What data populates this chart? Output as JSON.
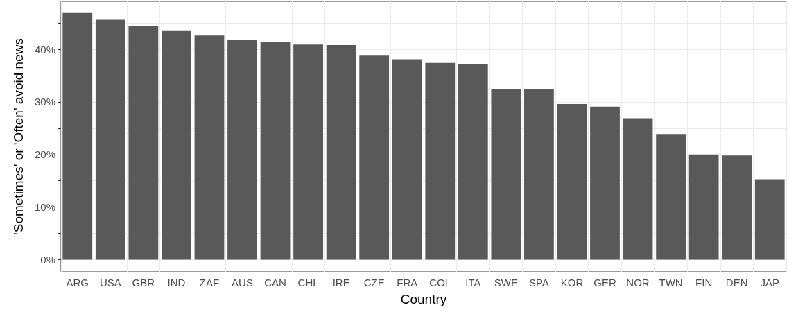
{
  "chart_data": {
    "type": "bar",
    "xlabel": "Country",
    "ylabel": "'Sometimes' or 'Often' avoid news",
    "categories": [
      "ARG",
      "USA",
      "GBR",
      "IND",
      "ZAF",
      "AUS",
      "CAN",
      "CHL",
      "IRE",
      "CZE",
      "FRA",
      "COL",
      "ITA",
      "SWE",
      "SPA",
      "KOR",
      "GER",
      "NOR",
      "TWN",
      "FIN",
      "DEN",
      "JAP"
    ],
    "values": [
      46.9,
      45.6,
      44.5,
      43.6,
      42.6,
      41.8,
      41.4,
      40.9,
      40.8,
      38.8,
      38.1,
      37.4,
      37.1,
      32.5,
      32.4,
      29.6,
      29.1,
      26.9,
      23.9,
      20.0,
      19.8,
      15.3
    ],
    "color": "#595959",
    "ylim": [
      -2.3,
      49.1
    ],
    "yticks": [
      {
        "value": 0,
        "label": "0%"
      },
      {
        "value": 5,
        "label": null
      },
      {
        "value": 10,
        "label": "10%"
      },
      {
        "value": 15,
        "label": null
      },
      {
        "value": 20,
        "label": "20%"
      },
      {
        "value": 25,
        "label": null
      },
      {
        "value": 30,
        "label": "30%"
      },
      {
        "value": 35,
        "label": null
      },
      {
        "value": 40,
        "label": "40%"
      },
      {
        "value": 45,
        "label": null
      }
    ],
    "grid": true
  }
}
